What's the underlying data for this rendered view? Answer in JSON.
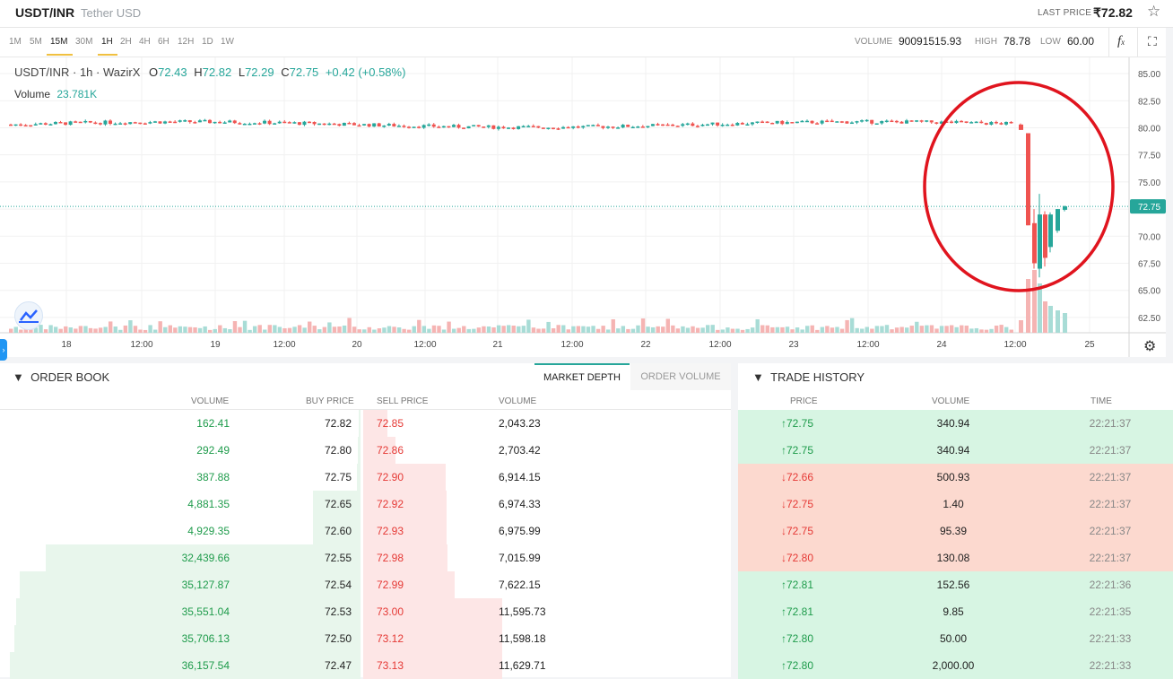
{
  "header": {
    "pair": "USDT/INR",
    "pair_name": "Tether USD",
    "last_price_label": "LAST PRICE",
    "last_price_value": "₹72.82",
    "favorite_icon": "star-icon"
  },
  "toolbar": {
    "timeframes": [
      "1M",
      "5M",
      "15M",
      "30M",
      "1H",
      "2H",
      "4H",
      "6H",
      "12H",
      "1D",
      "1W"
    ],
    "active_timeframes": [
      "15M",
      "1H"
    ],
    "volume_label": "VOLUME",
    "volume_value": "90091515.93",
    "high_label": "HIGH",
    "high_value": "78.78",
    "low_label": "LOW",
    "low_value": "60.00",
    "indicator_icon": "fx-icon",
    "fullscreen_icon": "fullscreen-icon"
  },
  "chart": {
    "legend_symbol": "USDT/INR · 1h · WazirX",
    "o_label": "O",
    "o_value": "72.43",
    "h_label": "H",
    "h_value": "72.82",
    "l_label": "L",
    "l_value": "72.29",
    "c_label": "C",
    "c_value": "72.75",
    "change": "+0.42 (+0.58%)",
    "volume_label": "Volume",
    "volume_value": "23.781K",
    "settings_icon": "gear-icon",
    "annotation": "red-circle-highlight"
  },
  "chart_data": {
    "type": "candlestick",
    "y_ticks": [
      "85.00",
      "82.50",
      "80.00",
      "77.50",
      "75.00",
      "72.75",
      "70.00",
      "67.50",
      "65.00",
      "62.50"
    ],
    "ylim": [
      61.5,
      85.5
    ],
    "x_ticks": [
      "18",
      "12:00",
      "19",
      "12:00",
      "20",
      "12:00",
      "21",
      "12:00",
      "22",
      "12:00",
      "23",
      "12:00",
      "24",
      "12:00",
      "25"
    ],
    "last_price": 72.75,
    "recent_candles": [
      {
        "o": 80.3,
        "h": 80.4,
        "l": 79.8,
        "c": 79.8
      },
      {
        "o": 79.5,
        "h": 79.5,
        "l": 71.0,
        "c": 71.0
      },
      {
        "o": 71.2,
        "h": 72.5,
        "l": 67.0,
        "c": 67.5
      },
      {
        "o": 67.0,
        "h": 73.9,
        "l": 66.2,
        "c": 72.0
      },
      {
        "o": 72.0,
        "h": 72.3,
        "l": 67.2,
        "c": 68.0
      },
      {
        "o": 69.0,
        "h": 72.2,
        "l": 68.5,
        "c": 72.0
      },
      {
        "o": 70.5,
        "h": 72.5,
        "l": 70.3,
        "c": 72.5
      },
      {
        "o": 72.43,
        "h": 72.82,
        "l": 72.29,
        "c": 72.75
      }
    ]
  },
  "order_book": {
    "title": "ORDER BOOK",
    "tabs": [
      "MARKET DEPTH",
      "ORDER VOLUME"
    ],
    "active_tab": "MARKET DEPTH",
    "columns": [
      "VOLUME",
      "BUY PRICE",
      "SELL PRICE",
      "VOLUME"
    ],
    "rows": [
      {
        "buy_volume": "162.41",
        "buy_price": "72.82",
        "sell_price": "72.85",
        "sell_volume": "2,043.23"
      },
      {
        "buy_volume": "292.49",
        "buy_price": "72.80",
        "sell_price": "72.86",
        "sell_volume": "2,703.42"
      },
      {
        "buy_volume": "387.88",
        "buy_price": "72.75",
        "sell_price": "72.90",
        "sell_volume": "6,914.15"
      },
      {
        "buy_volume": "4,881.35",
        "buy_price": "72.65",
        "sell_price": "72.92",
        "sell_volume": "6,974.33"
      },
      {
        "buy_volume": "4,929.35",
        "buy_price": "72.60",
        "sell_price": "72.93",
        "sell_volume": "6,975.99"
      },
      {
        "buy_volume": "32,439.66",
        "buy_price": "72.55",
        "sell_price": "72.98",
        "sell_volume": "7,015.99"
      },
      {
        "buy_volume": "35,127.87",
        "buy_price": "72.54",
        "sell_price": "72.99",
        "sell_volume": "7,622.15"
      },
      {
        "buy_volume": "35,551.04",
        "buy_price": "72.53",
        "sell_price": "73.00",
        "sell_volume": "11,595.73"
      },
      {
        "buy_volume": "35,706.13",
        "buy_price": "72.50",
        "sell_price": "73.12",
        "sell_volume": "11,598.18"
      },
      {
        "buy_volume": "36,157.54",
        "buy_price": "72.47",
        "sell_price": "73.13",
        "sell_volume": "11,629.71"
      }
    ]
  },
  "trade_history": {
    "title": "TRADE HISTORY",
    "columns": [
      "PRICE",
      "VOLUME",
      "TIME"
    ],
    "rows": [
      {
        "dir": "up",
        "arrow": "↑",
        "price": "72.75",
        "volume": "340.94",
        "time": "22:21:37"
      },
      {
        "dir": "up",
        "arrow": "↑",
        "price": "72.75",
        "volume": "340.94",
        "time": "22:21:37"
      },
      {
        "dir": "down",
        "arrow": "↓",
        "price": "72.66",
        "volume": "500.93",
        "time": "22:21:37"
      },
      {
        "dir": "down",
        "arrow": "↓",
        "price": "72.75",
        "volume": "1.40",
        "time": "22:21:37"
      },
      {
        "dir": "down",
        "arrow": "↓",
        "price": "72.75",
        "volume": "95.39",
        "time": "22:21:37"
      },
      {
        "dir": "down",
        "arrow": "↓",
        "price": "72.80",
        "volume": "130.08",
        "time": "22:21:37"
      },
      {
        "dir": "up",
        "arrow": "↑",
        "price": "72.81",
        "volume": "152.56",
        "time": "22:21:36"
      },
      {
        "dir": "up",
        "arrow": "↑",
        "price": "72.81",
        "volume": "9.85",
        "time": "22:21:35"
      },
      {
        "dir": "up",
        "arrow": "↑",
        "price": "72.80",
        "volume": "50.00",
        "time": "22:21:33"
      },
      {
        "dir": "up",
        "arrow": "↑",
        "price": "72.80",
        "volume": "2,000.00",
        "time": "22:21:33"
      }
    ]
  },
  "colors": {
    "up": "#26a69a",
    "down": "#ef5350",
    "buy_text": "#1e9b4b",
    "sell_text": "#e53935",
    "annotation": "#e0141e"
  }
}
